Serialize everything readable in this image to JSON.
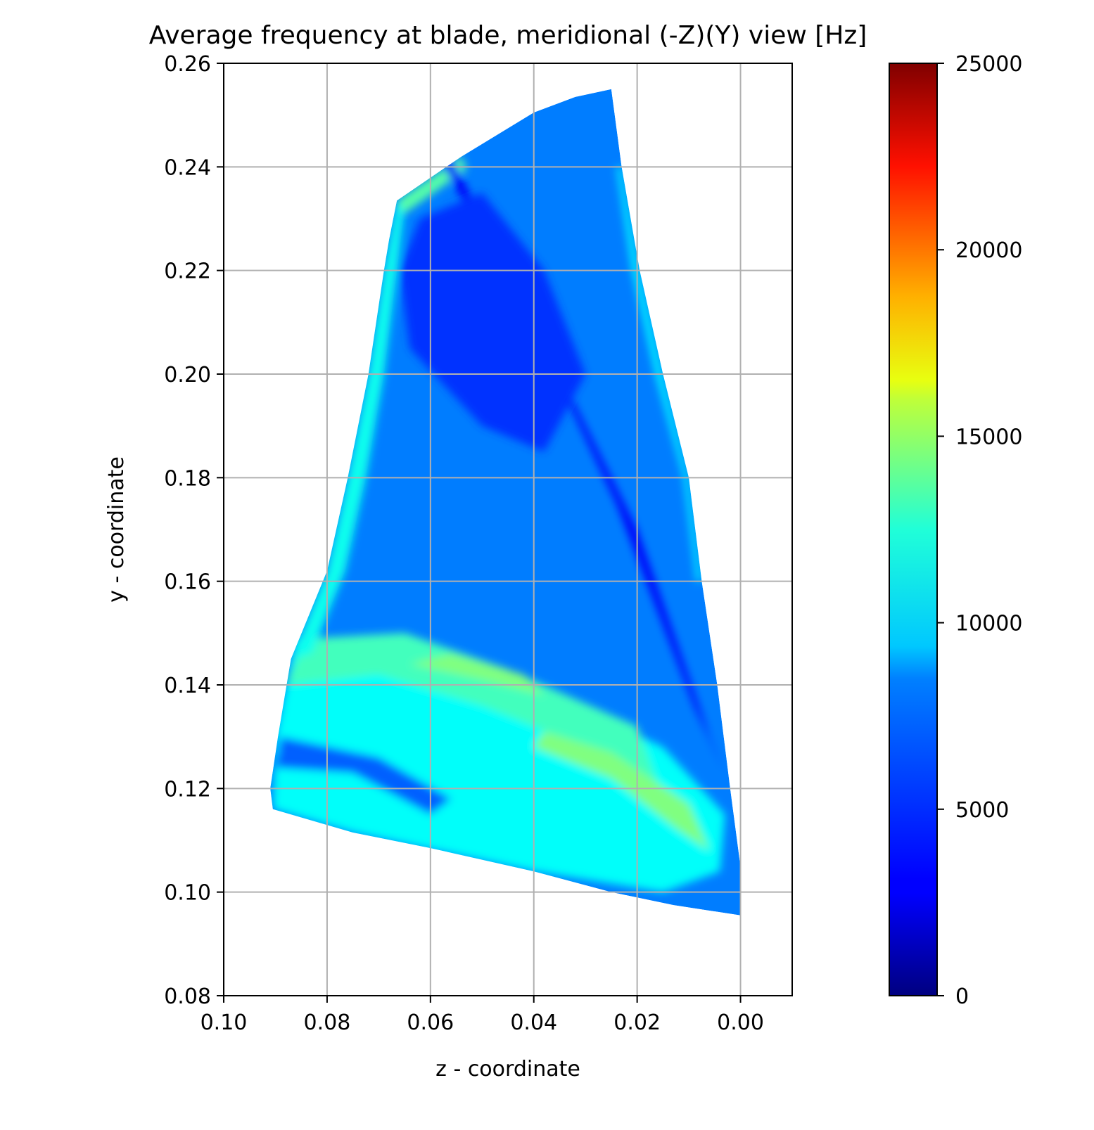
{
  "chart_data": {
    "type": "heatmap",
    "title": "Average frequency at blade, meridional (-Z)(Y) view [Hz]",
    "xlabel": "z - coordinate",
    "ylabel": "y - coordinate",
    "xlim": [
      0.1,
      -0.01
    ],
    "ylim": [
      0.08,
      0.26
    ],
    "x_inverted": true,
    "grid": true,
    "xticks": [
      "0.10",
      "0.08",
      "0.06",
      "0.04",
      "0.02",
      "0.00"
    ],
    "xtick_values": [
      0.1,
      0.08,
      0.06,
      0.04,
      0.02,
      0.0
    ],
    "yticks": [
      "0.08",
      "0.10",
      "0.12",
      "0.14",
      "0.16",
      "0.18",
      "0.20",
      "0.22",
      "0.24",
      "0.26"
    ],
    "ytick_values": [
      0.08,
      0.1,
      0.12,
      0.14,
      0.16,
      0.18,
      0.2,
      0.22,
      0.24,
      0.26
    ],
    "colormap": "jet",
    "colorbar": {
      "min": 0,
      "max": 25000,
      "tick_values": [
        0,
        5000,
        10000,
        15000,
        20000,
        25000
      ],
      "tick_labels": [
        "0",
        "5000",
        "10000",
        "15000",
        "20000",
        "25000"
      ]
    },
    "blade_outline": [
      [
        0.0665,
        0.2335
      ],
      [
        0.054,
        0.242
      ],
      [
        0.04,
        0.2505
      ],
      [
        0.032,
        0.2535
      ],
      [
        0.025,
        0.255
      ],
      [
        0.023,
        0.24
      ],
      [
        0.0195,
        0.22
      ],
      [
        0.015,
        0.2
      ],
      [
        0.01,
        0.18
      ],
      [
        0.0075,
        0.16
      ],
      [
        0.0045,
        0.14
      ],
      [
        0.002,
        0.12
      ],
      [
        0.0,
        0.105
      ],
      [
        0.0,
        0.0955
      ],
      [
        0.013,
        0.0975
      ],
      [
        0.025,
        0.1
      ],
      [
        0.04,
        0.104
      ],
      [
        0.06,
        0.1085
      ],
      [
        0.075,
        0.1115
      ],
      [
        0.0905,
        0.116
      ],
      [
        0.091,
        0.12
      ],
      [
        0.0895,
        0.13
      ],
      [
        0.087,
        0.145
      ],
      [
        0.08,
        0.162
      ],
      [
        0.076,
        0.18
      ],
      [
        0.072,
        0.2
      ],
      [
        0.069,
        0.22
      ],
      [
        0.068,
        0.226
      ]
    ],
    "frequency_field_Hz": {
      "background": 6200,
      "regions": [
        {
          "name": "root-band",
          "value": 9500,
          "polygon": [
            [
              0.0905,
              0.116
            ],
            [
              0.075,
              0.1115
            ],
            [
              0.04,
              0.104
            ],
            [
              0.015,
              0.1
            ],
            [
              0.004,
              0.104
            ],
            [
              0.003,
              0.115
            ],
            [
              0.015,
              0.128
            ],
            [
              0.04,
              0.14
            ],
            [
              0.07,
              0.148
            ],
            [
              0.086,
              0.149
            ],
            [
              0.09,
              0.13
            ]
          ]
        },
        {
          "name": "mid-band",
          "value": 11000,
          "polygon": [
            [
              0.088,
              0.14
            ],
            [
              0.07,
              0.142
            ],
            [
              0.05,
              0.136
            ],
            [
              0.03,
              0.128
            ],
            [
              0.015,
              0.118
            ],
            [
              0.02,
              0.132
            ],
            [
              0.045,
              0.143
            ],
            [
              0.065,
              0.15
            ],
            [
              0.084,
              0.149
            ]
          ]
        },
        {
          "name": "lower-streak",
          "value": 12500,
          "polygon": [
            [
              0.04,
              0.128
            ],
            [
              0.025,
              0.122
            ],
            [
              0.012,
              0.112
            ],
            [
              0.006,
              0.108
            ],
            [
              0.01,
              0.117
            ],
            [
              0.025,
              0.127
            ],
            [
              0.038,
              0.131
            ]
          ]
        },
        {
          "name": "upper-streak",
          "value": 12500,
          "polygon": [
            [
              0.064,
              0.144
            ],
            [
              0.05,
              0.141
            ],
            [
              0.038,
              0.138
            ],
            [
              0.042,
              0.142
            ],
            [
              0.056,
              0.146
            ]
          ]
        },
        {
          "name": "root-hole",
          "value": 5500,
          "polygon": [
            [
              0.09,
              0.124
            ],
            [
              0.075,
              0.123
            ],
            [
              0.06,
              0.115
            ],
            [
              0.056,
              0.118
            ],
            [
              0.07,
              0.126
            ],
            [
              0.089,
              0.13
            ]
          ]
        },
        {
          "name": "leading-edge-strip",
          "value": 9800,
          "polygon": [
            [
              0.0665,
              0.2335
            ],
            [
              0.069,
              0.22
            ],
            [
              0.072,
              0.2
            ],
            [
              0.076,
              0.18
            ],
            [
              0.08,
              0.162
            ],
            [
              0.087,
              0.145
            ],
            [
              0.083,
              0.146
            ],
            [
              0.0765,
              0.162
            ],
            [
              0.0725,
              0.18
            ],
            [
              0.069,
              0.2
            ],
            [
              0.0665,
              0.22
            ],
            [
              0.065,
              0.232
            ]
          ]
        },
        {
          "name": "tip-strip",
          "value": 11500,
          "polygon": [
            [
              0.0665,
              0.2335
            ],
            [
              0.054,
              0.242
            ],
            [
              0.053,
              0.2395
            ],
            [
              0.065,
              0.231
            ]
          ]
        },
        {
          "name": "trailing-edge-strip",
          "value": 9000,
          "polygon": [
            [
              0.023,
              0.24
            ],
            [
              0.0195,
              0.22
            ],
            [
              0.015,
              0.2
            ],
            [
              0.01,
              0.18
            ],
            [
              0.0075,
              0.16
            ],
            [
              0.0085,
              0.16
            ],
            [
              0.011,
              0.18
            ],
            [
              0.0165,
              0.2
            ],
            [
              0.021,
              0.22
            ],
            [
              0.024,
              0.24
            ]
          ]
        },
        {
          "name": "diagonal-low",
          "value": 3000,
          "polygon": [
            [
              0.056,
              0.242
            ],
            [
              0.04,
              0.21
            ],
            [
              0.02,
              0.17
            ],
            [
              0.006,
              0.13
            ],
            [
              0.003,
              0.123
            ],
            [
              0.009,
              0.136
            ],
            [
              0.024,
              0.175
            ],
            [
              0.043,
              0.215
            ],
            [
              0.058,
              0.241
            ]
          ]
        },
        {
          "name": "upper-core",
          "value": 4300,
          "polygon": [
            [
              0.062,
              0.23
            ],
            [
              0.05,
              0.235
            ],
            [
              0.038,
              0.22
            ],
            [
              0.03,
              0.2
            ],
            [
              0.038,
              0.185
            ],
            [
              0.05,
              0.19
            ],
            [
              0.064,
              0.205
            ],
            [
              0.066,
              0.22
            ]
          ]
        }
      ]
    }
  }
}
